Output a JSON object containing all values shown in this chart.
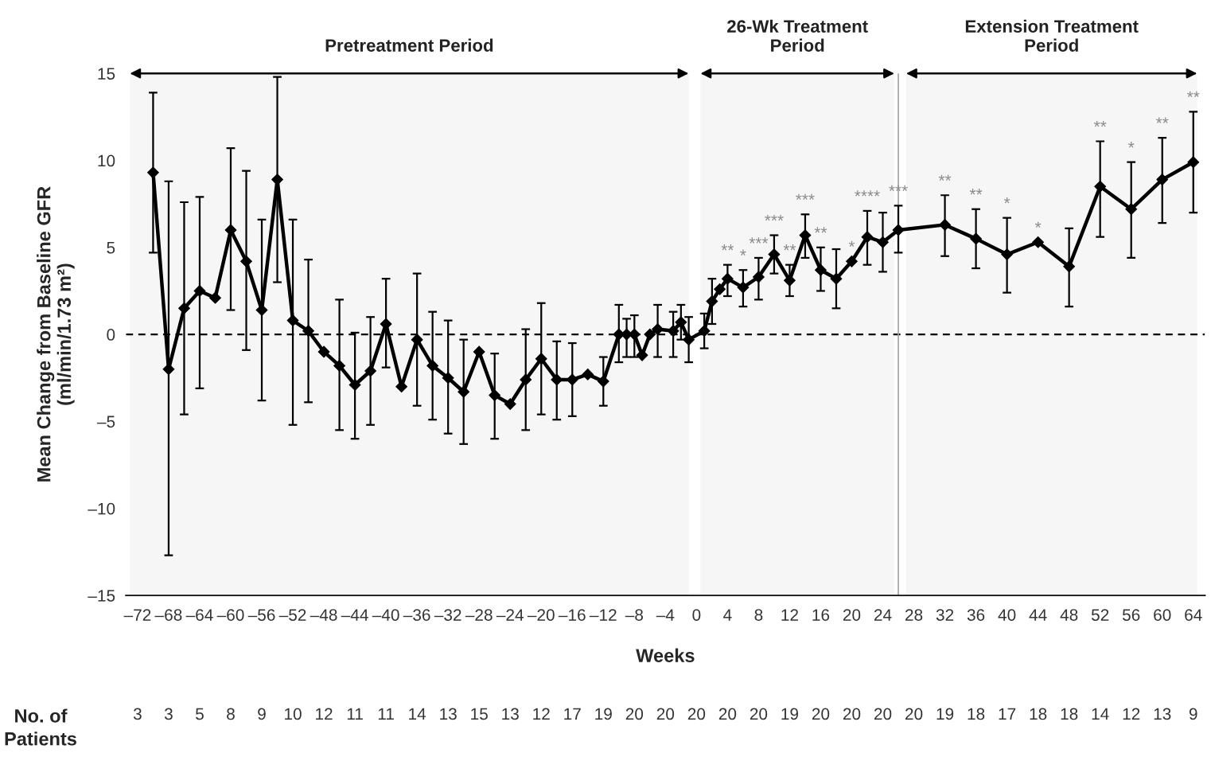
{
  "chart_data": [
    {
      "type": "line",
      "xlabel": "Weeks",
      "ylabel": "Mean Change from Baseline GFR\n(ml/min/1.73 m²)",
      "x": [
        -70,
        -68,
        -66,
        -64,
        -62,
        -60,
        -58,
        -56,
        -54,
        -52,
        -50,
        -48,
        -46,
        -44,
        -42,
        -40,
        -38,
        -36,
        -34,
        -32,
        -30,
        -28,
        -26,
        -24,
        -22,
        -20,
        -18,
        -16,
        -14,
        -12,
        -10,
        -9,
        -8,
        -7,
        -6,
        -5,
        -3,
        -2,
        -1,
        1,
        2,
        3,
        4,
        6,
        8,
        10,
        12,
        14,
        16,
        18,
        20,
        22,
        24,
        26,
        32,
        36,
        40,
        44,
        48,
        52,
        56,
        60,
        64
      ],
      "series": [
        {
          "color": "#000000",
          "values": [
            9.3,
            -2.0,
            1.5,
            2.5,
            2.1,
            6.0,
            4.2,
            1.4,
            8.9,
            0.8,
            0.2,
            -1.0,
            -1.8,
            -2.9,
            -2.1,
            0.6,
            -3.0,
            -0.3,
            -1.8,
            -2.5,
            -3.3,
            -1.0,
            -3.5,
            -4.0,
            -2.6,
            -1.4,
            -2.6,
            -2.6,
            -2.3,
            -2.7,
            0.0,
            0.0,
            0.0,
            -1.2,
            0.0,
            0.3,
            0.2,
            0.7,
            -0.3,
            0.2,
            1.9,
            2.6,
            3.2,
            2.7,
            3.3,
            4.6,
            3.1,
            5.7,
            3.7,
            3.2,
            4.2,
            5.6,
            5.3,
            6.0,
            6.3,
            5.5,
            4.6,
            5.3,
            3.9,
            8.5,
            7.2,
            8.9,
            9.9
          ],
          "errors": [
            [
              4.7,
              13.9
            ],
            [
              -12.7,
              8.8
            ],
            [
              -4.6,
              7.6
            ],
            [
              -3.1,
              7.9
            ],
            null,
            [
              1.4,
              10.7
            ],
            [
              -0.9,
              9.4
            ],
            [
              -3.8,
              6.6
            ],
            [
              3.0,
              14.8
            ],
            [
              -5.2,
              6.6
            ],
            [
              -3.9,
              4.3
            ],
            null,
            [
              -5.5,
              2.0
            ],
            [
              -6.0,
              0.1
            ],
            [
              -5.2,
              1.0
            ],
            [
              -1.9,
              3.2
            ],
            null,
            [
              -4.1,
              3.5
            ],
            [
              -4.9,
              1.3
            ],
            [
              -5.7,
              0.8
            ],
            [
              -6.3,
              -0.3
            ],
            null,
            [
              -6.0,
              -1.1
            ],
            null,
            [
              -5.5,
              0.3
            ],
            [
              -4.6,
              1.8
            ],
            [
              -4.9,
              -0.4
            ],
            [
              -4.7,
              -0.5
            ],
            null,
            [
              -4.1,
              -1.3
            ],
            [
              -1.6,
              1.7
            ],
            [
              -1.3,
              0.9
            ],
            [
              -1.3,
              1.1
            ],
            null,
            null,
            [
              -1.3,
              1.7
            ],
            [
              -1.3,
              1.3
            ],
            [
              -0.3,
              1.7
            ],
            [
              -1.6,
              1.0
            ],
            [
              -0.8,
              1.2
            ],
            [
              0.6,
              3.2
            ],
            null,
            [
              2.2,
              4.0
            ],
            [
              1.6,
              3.7
            ],
            [
              2.0,
              4.4
            ],
            [
              3.5,
              5.7
            ],
            [
              2.2,
              4.0
            ],
            [
              4.4,
              6.9
            ],
            [
              2.5,
              5.0
            ],
            [
              1.5,
              4.9
            ],
            null,
            [
              4.0,
              7.1
            ],
            [
              3.6,
              7.0
            ],
            [
              4.7,
              7.4
            ],
            [
              4.5,
              8.0
            ],
            [
              3.8,
              7.2
            ],
            [
              2.4,
              6.7
            ],
            null,
            [
              1.6,
              6.1
            ],
            [
              5.6,
              11.1
            ],
            [
              4.4,
              9.9
            ],
            [
              6.4,
              11.3
            ],
            [
              7.0,
              12.8
            ]
          ]
        }
      ],
      "marker": "diamond",
      "line_style": "solid",
      "grid": false,
      "xlim": [
        -73.5,
        65.5
      ],
      "ylim": [
        -15,
        15
      ],
      "xticks": [
        {
          "value": -72,
          "label": "–72"
        },
        {
          "value": -68,
          "label": "–68"
        },
        {
          "value": -64,
          "label": "–64"
        },
        {
          "value": -60,
          "label": "–60"
        },
        {
          "value": -56,
          "label": "–56"
        },
        {
          "value": -52,
          "label": "–52"
        },
        {
          "value": -48,
          "label": "–48"
        },
        {
          "value": -44,
          "label": "–44"
        },
        {
          "value": -40,
          "label": "–40"
        },
        {
          "value": -36,
          "label": "–36"
        },
        {
          "value": -32,
          "label": "–32"
        },
        {
          "value": -28,
          "label": "–28"
        },
        {
          "value": -24,
          "label": "–24"
        },
        {
          "value": -20,
          "label": "–20"
        },
        {
          "value": -16,
          "label": "–16"
        },
        {
          "value": -12,
          "label": "–12"
        },
        {
          "value": -8,
          "label": "–8"
        },
        {
          "value": -4,
          "label": "–4"
        },
        0,
        4,
        8,
        12,
        16,
        20,
        24,
        28,
        32,
        36,
        40,
        44,
        48,
        52,
        56,
        60,
        64
      ],
      "yticks": [
        {
          "value": -15,
          "label": "–15"
        },
        {
          "value": -10,
          "label": "–10"
        },
        {
          "value": -5,
          "label": "–5"
        },
        0,
        5,
        10,
        15
      ],
      "ref_lines": [
        {
          "axis": "y",
          "value": 0,
          "color": "#000000",
          "line_style": "dashed"
        },
        {
          "axis": "x",
          "value": 26,
          "color": "#a0a0a8",
          "line_style": "solid"
        }
      ],
      "bands": [
        {
          "axis": "x",
          "from": -73,
          "to": -1,
          "label": "Pretreatment Period",
          "color": "#f6f6f6"
        },
        {
          "axis": "x",
          "from": 0.5,
          "to": 25.5,
          "label": "26-Wk Treatment\nPeriod",
          "color": "#f6f6f6"
        },
        {
          "axis": "x",
          "from": 27,
          "to": 64.5,
          "label": "Extension Treatment\nPeriod",
          "color": "#f6f6f6"
        }
      ],
      "annotations": [
        {
          "text": "**",
          "x": 4,
          "y": 4.0
        },
        {
          "text": "*",
          "x": 6,
          "y": 3.7
        },
        {
          "text": "***",
          "x": 8,
          "y": 4.4
        },
        {
          "text": "***",
          "x": 10,
          "y": 5.7
        },
        {
          "text": "**",
          "x": 12,
          "y": 4.0
        },
        {
          "text": "***",
          "x": 14,
          "y": 6.9
        },
        {
          "text": "**",
          "x": 16,
          "y": 5.0
        },
        {
          "text": "*",
          "x": 20,
          "y": 4.2
        },
        {
          "text": "****",
          "x": 22,
          "y": 7.1
        },
        {
          "text": "***",
          "x": 26,
          "y": 7.4
        },
        {
          "text": "**",
          "x": 32,
          "y": 8.0
        },
        {
          "text": "**",
          "x": 36,
          "y": 7.2
        },
        {
          "text": "*",
          "x": 40,
          "y": 6.7
        },
        {
          "text": "*",
          "x": 44,
          "y": 5.3
        },
        {
          "text": "**",
          "x": 52,
          "y": 11.1
        },
        {
          "text": "*",
          "x": 56,
          "y": 9.9
        },
        {
          "text": "**",
          "x": 60,
          "y": 11.3
        },
        {
          "text": "**",
          "x": 64,
          "y": 12.8
        }
      ]
    },
    {
      "type": "other",
      "title": "No. of\nPatients",
      "categories": [
        null,
        null,
        null,
        null,
        null,
        null,
        null,
        null,
        null,
        null,
        null,
        null,
        null,
        null,
        null,
        null,
        null,
        null,
        null,
        null,
        null,
        null,
        null,
        null,
        null,
        null,
        null,
        null,
        null,
        null,
        null,
        null,
        null,
        null,
        null
      ],
      "values": [
        3,
        3,
        5,
        8,
        9,
        10,
        12,
        11,
        11,
        14,
        13,
        15,
        13,
        12,
        17,
        19,
        20,
        20,
        20,
        20,
        20,
        19,
        20,
        20,
        20,
        20,
        19,
        18,
        17,
        18,
        18,
        14,
        12,
        13,
        9
      ],
      "data_labels": true
    }
  ]
}
